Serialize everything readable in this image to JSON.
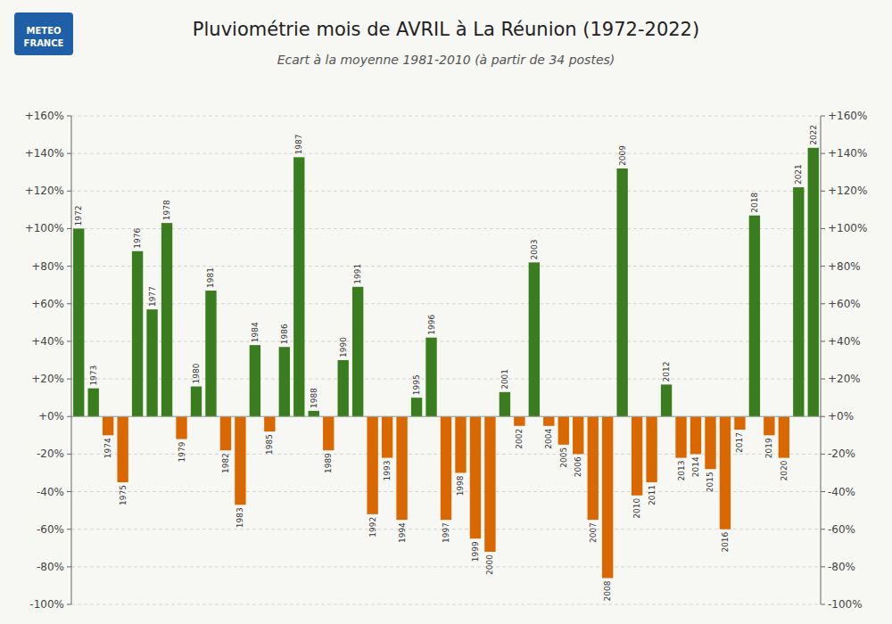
{
  "chart_data": {
    "type": "bar",
    "title": "Pluviométrie mois de AVRIL à La Réunion (1972-2022)",
    "subtitle": "Ecart à la moyenne 1981-2010 (à partir de 34 postes)",
    "annotations": [
      "METEO",
      "FRANCE"
    ],
    "categories": [
      "1972",
      "1973",
      "1974",
      "1975",
      "1976",
      "1977",
      "1978",
      "1979",
      "1980",
      "1981",
      "1982",
      "1983",
      "1984",
      "1985",
      "1986",
      "1987",
      "1988",
      "1989",
      "1990",
      "1991",
      "1992",
      "1993",
      "1994",
      "1995",
      "1996",
      "1997",
      "1998",
      "1999",
      "2000",
      "2001",
      "2002",
      "2003",
      "2004",
      "2005",
      "2006",
      "2007",
      "2008",
      "2009",
      "2010",
      "2011",
      "2012",
      "2013",
      "2014",
      "2015",
      "2016",
      "2017",
      "2018",
      "2019",
      "2020",
      "2021",
      "2022"
    ],
    "values": [
      100,
      15,
      -10,
      -35,
      88,
      57,
      103,
      -12,
      16,
      67,
      -18,
      -47,
      38,
      -8,
      37,
      138,
      3,
      -18,
      30,
      69,
      -52,
      -22,
      -55,
      10,
      42,
      -55,
      -30,
      -65,
      -72,
      13,
      -5,
      82,
      -5,
      -15,
      -20,
      -55,
      -86,
      132,
      -42,
      -35,
      17,
      -22,
      -20,
      -28,
      -60,
      -7,
      107,
      -10,
      -22,
      122,
      143
    ],
    "colors": [
      "#3a7d1e",
      "#3a7d1e",
      "#d96800",
      "#d96800",
      "#3a7d1e",
      "#3a7d1e",
      "#3a7d1e",
      "#d96800",
      "#3a7d1e",
      "#3a7d1e",
      "#d96800",
      "#d96800",
      "#3a7d1e",
      "#d96800",
      "#3a7d1e",
      "#3a7d1e",
      "#3a7d1e",
      "#d96800",
      "#3a7d1e",
      "#3a7d1e",
      "#d96800",
      "#d96800",
      "#d96800",
      "#3a7d1e",
      "#3a7d1e",
      "#d96800",
      "#d96800",
      "#d96800",
      "#d96800",
      "#3a7d1e",
      "#d96800",
      "#3a7d1e",
      "#d96800",
      "#d96800",
      "#d96800",
      "#d96800",
      "#d96800",
      "#3a7d1e",
      "#d96800",
      "#d96800",
      "#3a7d1e",
      "#d96800",
      "#d96800",
      "#d96800",
      "#d96800",
      "#d96800",
      "#3a7d1e",
      "#d96800",
      "#d96800",
      "#3a7d1e",
      "#3a7d1e"
    ],
    "ylim": [
      -100,
      160
    ],
    "yticks": [
      {
        "value": -100,
        "label": "-100%"
      },
      {
        "value": -80,
        "label": "-80%"
      },
      {
        "value": -60,
        "label": "-60%"
      },
      {
        "value": -40,
        "label": "-40%"
      },
      {
        "value": -20,
        "label": "-20%"
      },
      {
        "value": 0,
        "label": "+0%"
      },
      {
        "value": 20,
        "label": "+20%"
      },
      {
        "value": 40,
        "label": "+40%"
      },
      {
        "value": 60,
        "label": "+60%"
      },
      {
        "value": 80,
        "label": "+80%"
      },
      {
        "value": 100,
        "label": "+100%"
      },
      {
        "value": 120,
        "label": "+120%"
      },
      {
        "value": 140,
        "label": "+140%"
      },
      {
        "value": 160,
        "label": "+160%"
      }
    ],
    "y2lim": [
      -100,
      160
    ],
    "y2ticks": [
      {
        "value": -100,
        "label": "-100%"
      },
      {
        "value": -80,
        "label": "-80%"
      },
      {
        "value": -60,
        "label": "-60%"
      },
      {
        "value": -40,
        "label": "-40%"
      },
      {
        "value": -20,
        "label": "-20%"
      },
      {
        "value": 0,
        "label": "+0%"
      },
      {
        "value": 20,
        "label": "+20%"
      },
      {
        "value": 40,
        "label": "+40%"
      },
      {
        "value": 60,
        "label": "+60%"
      },
      {
        "value": 80,
        "label": "+80%"
      },
      {
        "value": 100,
        "label": "+100%"
      },
      {
        "value": 120,
        "label": "+120%"
      },
      {
        "value": 140,
        "label": "+140%"
      },
      {
        "value": 160,
        "label": "+160%"
      }
    ],
    "grid": true
  }
}
